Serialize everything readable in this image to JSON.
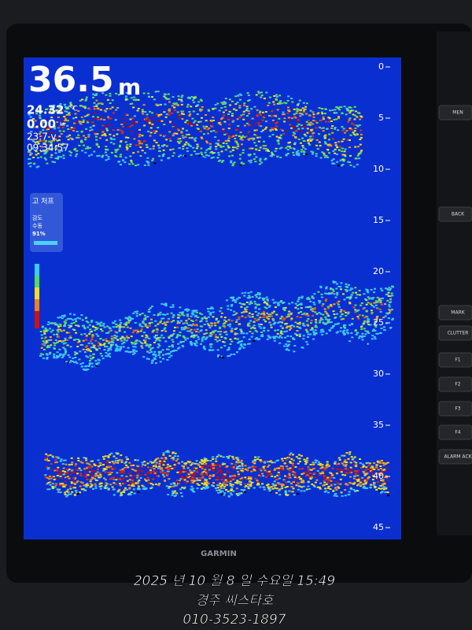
{
  "readout": {
    "depth": "36.5",
    "depth_unit": "m",
    "temperature": "24.32",
    "temperature_unit": "°C",
    "speed": "0.00",
    "speed_unit": "kt",
    "voltage": "23.7 v",
    "time": "09:34:57"
  },
  "mode_panel": {
    "title": "고 처프",
    "gain_label": "감도",
    "gain_mode": "수동",
    "gain_value": "91%"
  },
  "depth_scale": {
    "ticks": [
      0,
      5,
      10,
      15,
      20,
      25,
      30,
      35,
      40,
      45
    ],
    "max": 45
  },
  "buttons": [
    "MEN",
    "BACK",
    "MARK",
    "CLUTTER",
    "F1",
    "F2",
    "F3",
    "F4",
    "ALARM ACK"
  ],
  "brand": "GARMIN",
  "caption": {
    "date": "2025 년 10 월 8 일 수요일 15:49",
    "boat": "경주 씨스타호",
    "phone": "010-3523-1897"
  }
}
